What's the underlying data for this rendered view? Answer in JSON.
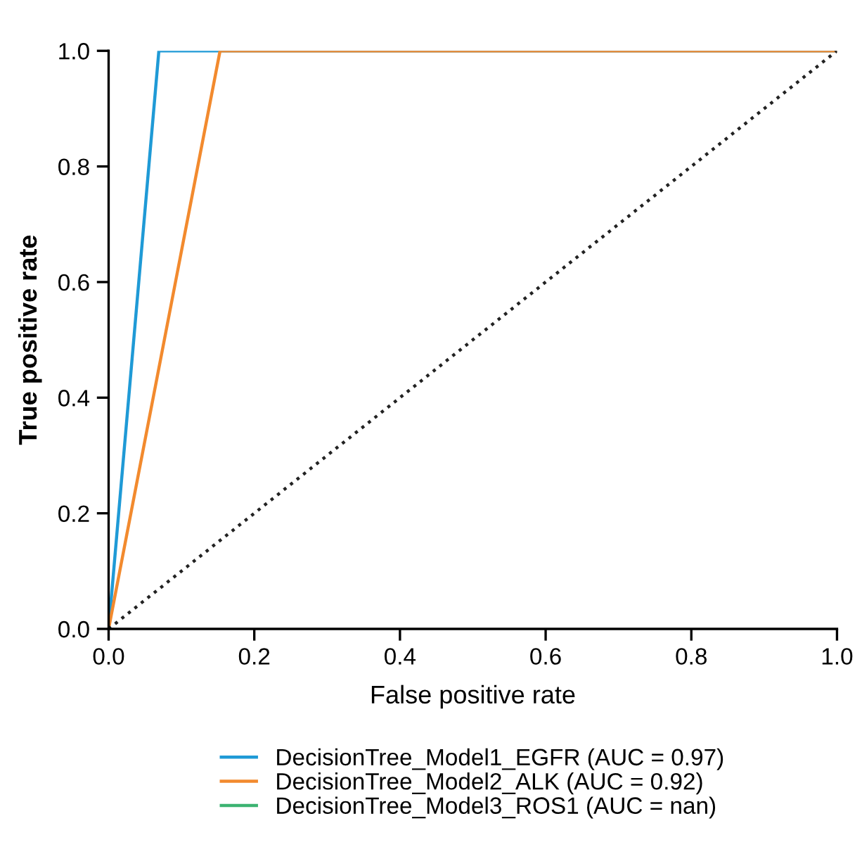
{
  "chart_data": {
    "type": "line",
    "xlabel": "False positive rate",
    "ylabel": "True positive rate",
    "xlim": [
      0,
      1
    ],
    "ylim": [
      0,
      1
    ],
    "xticks": [
      {
        "value": 0,
        "label": "0.0"
      },
      0.2,
      0.4,
      0.6,
      0.8,
      {
        "value": 1,
        "label": "1.0"
      }
    ],
    "yticks": [
      {
        "value": 0,
        "label": "0.0"
      },
      0.2,
      0.4,
      0.6,
      0.8,
      {
        "value": 1,
        "label": "1.0"
      }
    ],
    "series": [
      {
        "name": "DecisionTree_Model1_EGFR (AUC = 0.97)",
        "color": "#1f9ad6",
        "x": [
          0,
          0.069,
          1
        ],
        "values": [
          0,
          1,
          1
        ]
      },
      {
        "name": "DecisionTree_Model2_ALK (AUC = 0.92)",
        "color": "#f28a2e",
        "x": [
          0,
          0.153,
          1
        ],
        "values": [
          0,
          1,
          1
        ]
      },
      {
        "name": "DecisionTree_Model3_ROS1 (AUC = nan)",
        "color": "#3cb371"
      },
      {
        "color": "#222222",
        "x": [
          0,
          1
        ],
        "values": [
          0,
          1
        ],
        "line_style": "dotted"
      }
    ],
    "legend": "bottom",
    "grid": false,
    "marker": "none",
    "line_style": "solid"
  }
}
